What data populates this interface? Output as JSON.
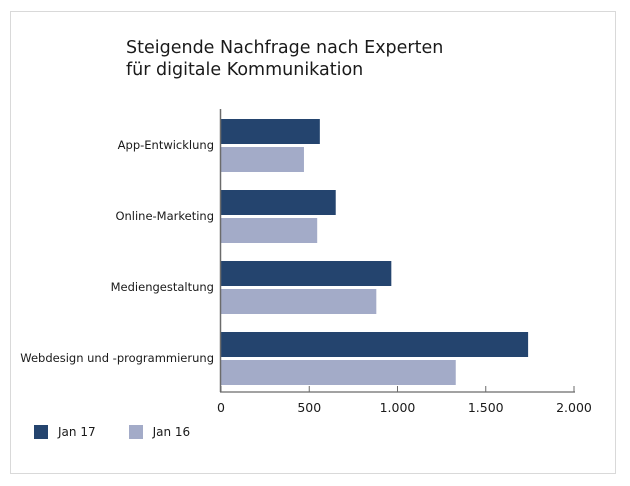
{
  "chart_data": {
    "type": "bar",
    "orientation": "horizontal",
    "title": "Steigende Nachfrage nach Experten für digitale Kommunikation",
    "title_lines": [
      "Steigende Nachfrage nach Experten",
      "für digitale Kommunikation"
    ],
    "categories": [
      "App-Entwicklung",
      "Online-Marketing",
      "Mediengestaltung",
      "Webdesign und -programmierung"
    ],
    "series": [
      {
        "name": "Jan 17",
        "color": "#24446e",
        "values": [
          560,
          650,
          965,
          1740
        ]
      },
      {
        "name": "Jan 16",
        "color": "#a3abc8",
        "values": [
          470,
          545,
          880,
          1330
        ]
      }
    ],
    "xlabel": "",
    "ylabel": "",
    "xlim": [
      0,
      2000
    ],
    "xticks": [
      0,
      500,
      1000,
      1500,
      2000
    ],
    "xtick_labels": [
      "0",
      "500",
      "1.000",
      "1.500",
      "2.000"
    ],
    "grid": false,
    "legend_position": "bottom-left"
  }
}
